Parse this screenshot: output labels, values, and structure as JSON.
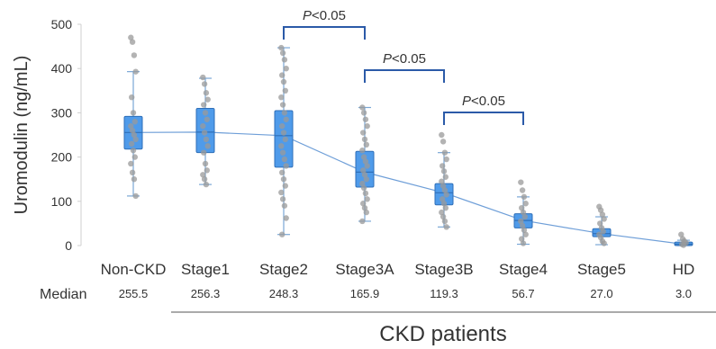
{
  "chart_data": {
    "type": "box",
    "ylabel": "Uromodulin (ng/mL)",
    "ylim": [
      0,
      500
    ],
    "yticks": [
      0,
      100,
      200,
      300,
      400,
      500
    ],
    "categories": [
      "Non-CKD",
      "Stage1",
      "Stage2",
      "Stage3A",
      "Stage3B",
      "Stage4",
      "Stage5",
      "HD"
    ],
    "median_row_label": "Median",
    "medians": [
      "255.5",
      "256.3",
      "248.3",
      "165.9",
      "119.3",
      "56.7",
      "27.0",
      "3.0"
    ],
    "median_values": [
      255.5,
      256.3,
      248.3,
      165.9,
      119.3,
      56.7,
      27.0,
      3.0
    ],
    "boxes": [
      {
        "q1": 218,
        "q3": 292,
        "whisker_low": 112,
        "whisker_high": 393
      },
      {
        "q1": 210,
        "q3": 310,
        "whisker_low": 138,
        "whisker_high": 378
      },
      {
        "q1": 177,
        "q3": 305,
        "whisker_low": 25,
        "whisker_high": 447
      },
      {
        "q1": 132,
        "q3": 213,
        "whisker_low": 55,
        "whisker_high": 312
      },
      {
        "q1": 92,
        "q3": 140,
        "whisker_low": 42,
        "whisker_high": 210
      },
      {
        "q1": 40,
        "q3": 72,
        "whisker_low": 3,
        "whisker_high": 110
      },
      {
        "q1": 20,
        "q3": 38,
        "whisker_low": 2,
        "whisker_high": 65
      },
      {
        "q1": 0,
        "q3": 8,
        "whisker_low": 0,
        "whisker_high": 12
      }
    ],
    "points": [
      [
        470,
        460,
        430,
        393,
        335,
        300,
        280,
        270,
        260,
        250,
        240,
        230,
        215,
        200,
        185,
        165,
        150,
        112
      ],
      [
        380,
        365,
        345,
        330,
        318,
        300,
        285,
        270,
        255,
        240,
        225,
        210,
        185,
        170,
        160,
        150,
        138
      ],
      [
        447,
        435,
        420,
        400,
        385,
        370,
        350,
        335,
        318,
        300,
        285,
        270,
        255,
        240,
        225,
        210,
        195,
        180,
        165,
        150,
        135,
        120,
        105,
        90,
        62,
        25
      ],
      [
        312,
        300,
        285,
        270,
        255,
        240,
        228,
        215,
        200,
        190,
        180,
        170,
        160,
        150,
        140,
        130,
        118,
        105,
        95,
        85,
        75,
        55
      ],
      [
        250,
        235,
        210,
        195,
        180,
        168,
        155,
        145,
        135,
        125,
        115,
        105,
        95,
        85,
        75,
        65,
        55,
        42
      ],
      [
        143,
        125,
        110,
        95,
        85,
        75,
        65,
        55,
        45,
        35,
        25,
        15,
        5
      ],
      [
        88,
        80,
        70,
        60,
        50,
        40,
        32,
        25,
        18,
        10,
        5
      ],
      [
        25,
        15,
        10,
        6,
        3,
        1
      ]
    ],
    "comparisons": [
      {
        "from": "Stage2",
        "to": "Stage3A",
        "label_italic": "P",
        "label_rest": "<0.05"
      },
      {
        "from": "Stage3A",
        "to": "Stage3B",
        "label_italic": "P",
        "label_rest": "<0.05"
      },
      {
        "from": "Stage3B",
        "to": "Stage4",
        "label_italic": "P",
        "label_rest": "<0.05"
      }
    ],
    "group_label": "CKD patients",
    "colors": {
      "box_fill": "#4f9bea",
      "box_stroke": "#2f6fb8",
      "whisker": "#7aa7d6",
      "points": "#9a9a9a",
      "trend_line": "#6f9fd8",
      "bracket": "#2b5aa8",
      "axis": "#cfcfcf"
    }
  }
}
